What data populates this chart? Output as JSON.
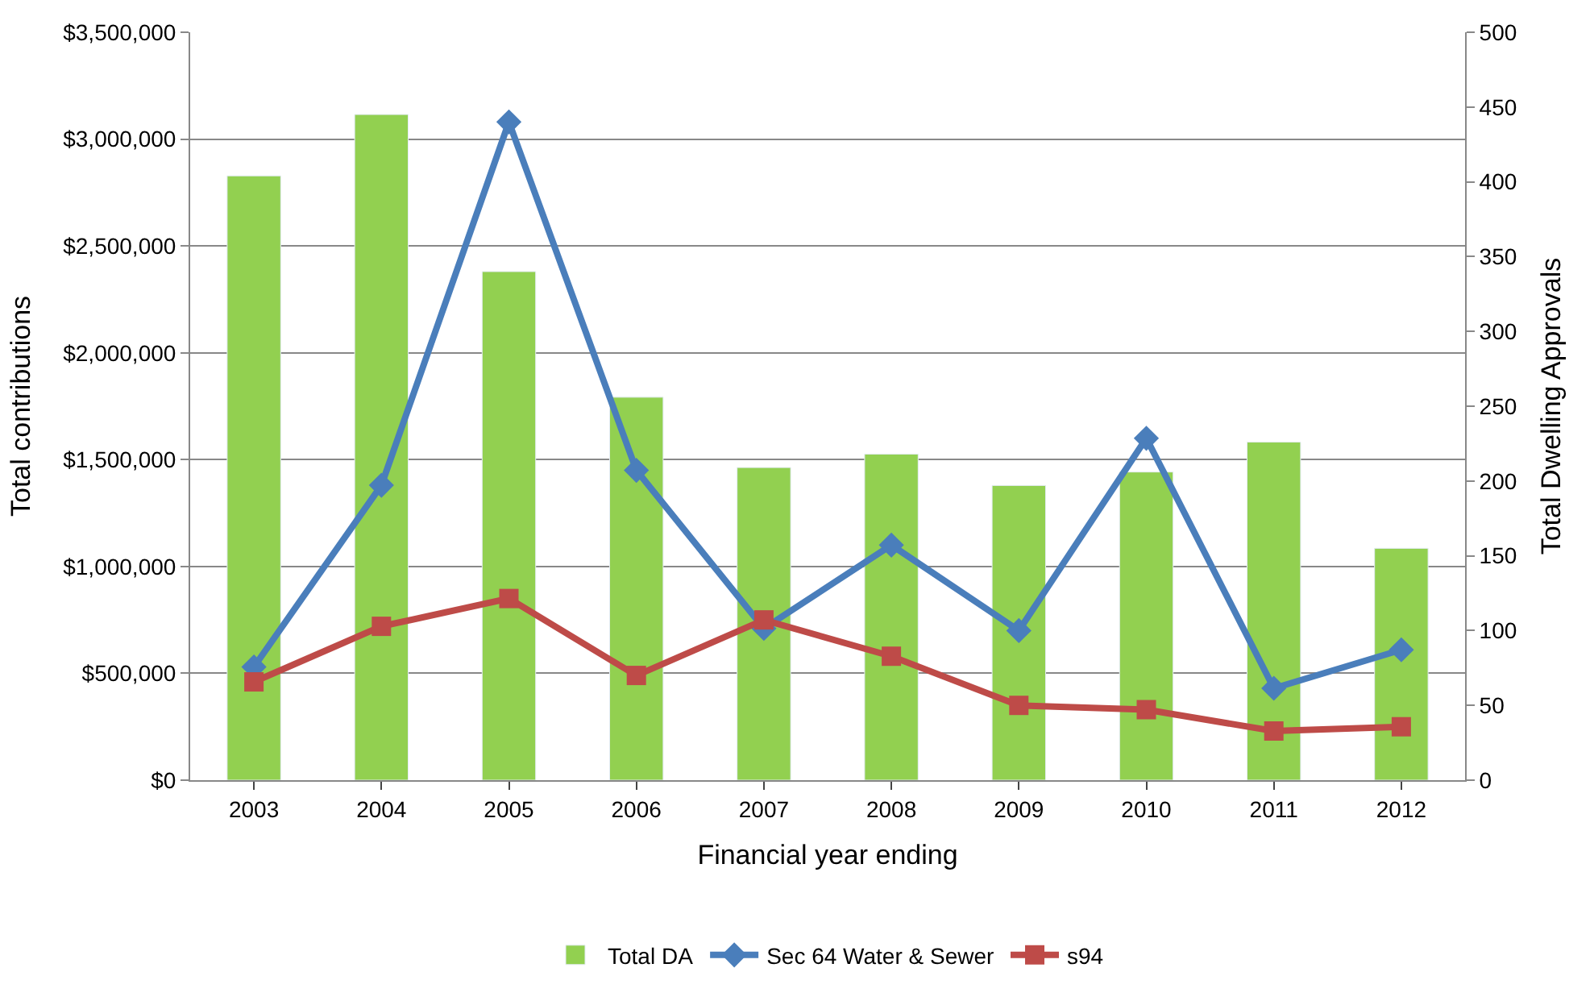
{
  "chart_data": {
    "type": "bar",
    "xlabel": "Financial year ending",
    "ylabel": "Total contributions",
    "y2label": "Total Dwelling Approvals",
    "categories": [
      "2003",
      "2004",
      "2005",
      "2006",
      "2007",
      "2008",
      "2009",
      "2010",
      "2011",
      "2012"
    ],
    "series": [
      {
        "name": "Total DA",
        "axis": "y2",
        "color": "#92d050",
        "values": [
          404,
          445,
          340,
          256,
          209,
          218,
          197,
          206,
          226,
          155
        ]
      },
      {
        "name": "Sec 64 Water & Sewer",
        "type": "line",
        "axis": "y",
        "color": "#4a7ebb",
        "marker": "diamond",
        "values": [
          530000,
          1380000,
          3080000,
          1450000,
          710000,
          1100000,
          700000,
          1600000,
          430000,
          610000
        ]
      },
      {
        "name": "s94",
        "type": "line",
        "axis": "y",
        "color": "#be4b48",
        "marker": "square",
        "values": [
          460000,
          720000,
          850000,
          490000,
          750000,
          580000,
          350000,
          330000,
          230000,
          250000
        ]
      }
    ],
    "ylim": [
      0,
      3500000
    ],
    "yticks": [
      {
        "value": 0,
        "label": "$0"
      },
      {
        "value": 500000,
        "label": "$500,000"
      },
      {
        "value": 1000000,
        "label": "$1,000,000"
      },
      {
        "value": 1500000,
        "label": "$1,500,000"
      },
      {
        "value": 2000000,
        "label": "$2,000,000"
      },
      {
        "value": 2500000,
        "label": "$2,500,000"
      },
      {
        "value": 3000000,
        "label": "$3,000,000"
      },
      {
        "value": 3500000,
        "label": "$3,500,000"
      }
    ],
    "y2lim": [
      0,
      500
    ],
    "y2ticks": [
      0,
      50,
      100,
      150,
      200,
      250,
      300,
      350,
      400,
      450,
      500
    ],
    "grid": "y",
    "legend": "bottom",
    "line_style": "solid"
  }
}
